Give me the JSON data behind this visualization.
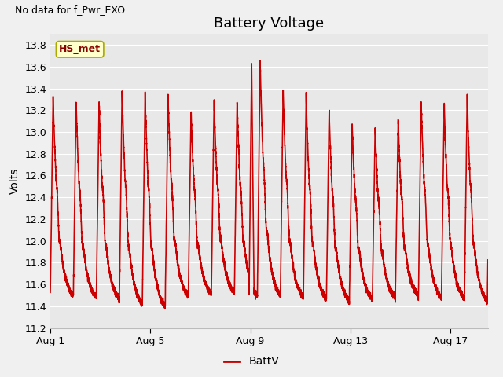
{
  "title": "Battery Voltage",
  "no_data_text": "No data for f_Pwr_EXO",
  "ylabel": "Volts",
  "xlabel": "",
  "legend_label": "BattV",
  "legend_line_color": "#cc0000",
  "line_color": "#cc0000",
  "line_width": 1.2,
  "ylim": [
    11.2,
    13.9
  ],
  "yticks": [
    11.2,
    11.4,
    11.6,
    11.8,
    12.0,
    12.2,
    12.4,
    12.6,
    12.8,
    13.0,
    13.2,
    13.4,
    13.6,
    13.8
  ],
  "xtick_labels": [
    "Aug 1",
    "Aug 5",
    "Aug 9",
    "Aug 13",
    "Aug 17"
  ],
  "xtick_positions": [
    0,
    4,
    8,
    12,
    16
  ],
  "xlim": [
    0,
    17.5
  ],
  "background_color": "#f0f0f0",
  "plot_bg_color": "#e8e8e8",
  "grid_color": "#ffffff",
  "title_fontsize": 13,
  "label_fontsize": 10,
  "tick_fontsize": 9,
  "no_data_fontsize": 9,
  "legend_box_facecolor": "#ffffcc",
  "legend_box_edgecolor": "#aaaa00",
  "legend_text_color": "#880000",
  "figsize": [
    6.4,
    4.8
  ],
  "dpi": 100
}
